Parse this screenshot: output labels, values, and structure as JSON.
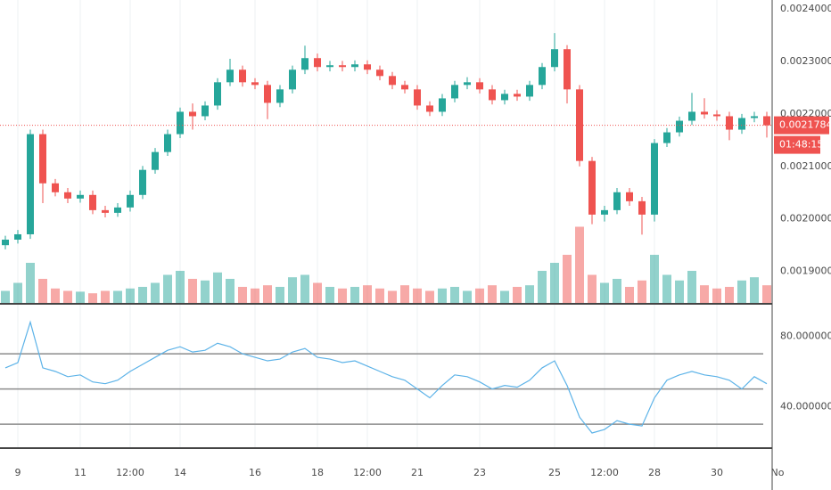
{
  "chart_data": {
    "type": "candlestick",
    "categories": [
      null,
      "9",
      null,
      null,
      null,
      null,
      "11",
      null,
      null,
      null,
      "12:00",
      null,
      null,
      null,
      "14",
      null,
      null,
      null,
      null,
      null,
      "16",
      null,
      null,
      null,
      null,
      "18",
      null,
      null,
      null,
      "12:00",
      null,
      null,
      null,
      "21",
      null,
      null,
      null,
      null,
      "23",
      null,
      null,
      null,
      null,
      null,
      "25",
      null,
      null,
      null,
      "12:00",
      null,
      null,
      null,
      "28",
      null,
      null,
      null,
      null,
      "30",
      null,
      null,
      null,
      null
    ],
    "next_label": "No",
    "open": [
      0.00195,
      0.0019605,
      0.0019707,
      0.0021615,
      0.0020678,
      0.0020508,
      0.0020388,
      0.0020457,
      0.0020167,
      0.0020116,
      0.0020218,
      0.0020457,
      0.0020934,
      0.0021274,
      0.0021615,
      0.0022041,
      0.0021956,
      0.002216,
      0.0022603,
      0.0022842,
      0.0022603,
      0.0022552,
      0.0022211,
      0.0022467,
      0.0022842,
      0.0023063,
      0.0022893,
      0.0022927,
      0.0022893,
      0.0022944,
      0.0022842,
      0.0022722,
      0.0022552,
      0.0022467,
      0.002216,
      0.0022041,
      0.0022296,
      0.0022552,
      0.0022603,
      0.0022467,
      0.0022262,
      0.0022382,
      0.002233,
      0.0022552,
      0.0022893,
      0.0023233,
      0.0022467,
      0.0021104,
      0.0020082,
      0.0020167,
      0.0020508,
      0.0020337,
      0.0020082,
      0.0021445,
      0.0021649,
      0.002187,
      0.0022041,
      0.002199,
      0.0021956,
      0.00217,
      0.0021922,
      0.0021956
    ],
    "high": [
      0.001968,
      0.001979,
      0.00217,
      0.00217,
      0.002076,
      0.002059,
      0.002054,
      0.002054,
      0.002025,
      0.00203,
      0.002054,
      0.002101,
      0.002135,
      0.00217,
      0.002212,
      0.00222,
      0.002224,
      0.002268,
      0.002305,
      0.002292,
      0.002268,
      0.002263,
      0.002255,
      0.002292,
      0.00233,
      0.002315,
      0.002301,
      0.002301,
      0.002302,
      0.002302,
      0.002292,
      0.00228,
      0.002263,
      0.002255,
      0.002224,
      0.002238,
      0.002263,
      0.00227,
      0.002268,
      0.002255,
      0.002246,
      0.002246,
      0.002263,
      0.002297,
      0.002354,
      0.002331,
      0.002255,
      0.002118,
      0.002025,
      0.002059,
      0.002059,
      0.002042,
      0.002152,
      0.002173,
      0.002195,
      0.00224,
      0.00223,
      0.002207,
      0.002204,
      0.0022,
      0.002204,
      0.002204
    ],
    "low": [
      0.001942,
      0.001953,
      0.001962,
      0.00203,
      0.002043,
      0.00203,
      0.002031,
      0.002009,
      0.002003,
      0.002004,
      0.002014,
      0.002038,
      0.002086,
      0.00212,
      0.002154,
      0.00217,
      0.002188,
      0.002208,
      0.002253,
      0.002252,
      0.002247,
      0.00219,
      0.002213,
      0.002239,
      0.002276,
      0.002281,
      0.002281,
      0.002281,
      0.002281,
      0.002276,
      0.002264,
      0.002247,
      0.002239,
      0.002208,
      0.002196,
      0.002196,
      0.002222,
      0.002247,
      0.002239,
      0.002218,
      0.002218,
      0.002225,
      0.002225,
      0.002247,
      0.002281,
      0.00222,
      0.0021,
      0.00199,
      0.001995,
      0.002009,
      0.002025,
      0.00197,
      0.001995,
      0.002137,
      0.002157,
      0.002179,
      0.002191,
      0.002187,
      0.00215,
      0.002162,
      0.002184,
      0.002155
    ],
    "close": [
      0.0019605,
      0.0019707,
      0.0021615,
      0.0020678,
      0.0020508,
      0.0020388,
      0.0020457,
      0.0020167,
      0.0020116,
      0.0020218,
      0.0020457,
      0.0020934,
      0.0021274,
      0.0021615,
      0.0022041,
      0.0021956,
      0.002216,
      0.0022603,
      0.0022842,
      0.0022603,
      0.0022552,
      0.0022211,
      0.0022467,
      0.0022842,
      0.0023063,
      0.0022893,
      0.0022927,
      0.0022893,
      0.0022944,
      0.0022842,
      0.0022722,
      0.0022552,
      0.0022467,
      0.002216,
      0.0022041,
      0.0022296,
      0.0022552,
      0.0022603,
      0.0022467,
      0.0022262,
      0.0022382,
      0.002233,
      0.0022552,
      0.0022893,
      0.0023233,
      0.0022467,
      0.0021104,
      0.0020082,
      0.0020167,
      0.0020508,
      0.0020337,
      0.0020082,
      0.0021445,
      0.0021649,
      0.002187,
      0.0022041,
      0.002199,
      0.0021956,
      0.00217,
      0.0021922,
      0.0021956,
      0.0021784
    ],
    "up_color": "#26a69a",
    "down_color": "#ef5350",
    "ylim": [
      0.00184,
      0.002417
    ],
    "yticks": [
      {
        "value": 0.0024,
        "label": "0.0024000"
      },
      {
        "value": 0.0023,
        "label": "0.0023000"
      },
      {
        "value": 0.0022,
        "label": "0.0022000"
      },
      {
        "value": 0.0021,
        "label": "0.0021000"
      },
      {
        "value": 0.002,
        "label": "0.0020000"
      },
      {
        "value": 0.0019,
        "label": "0.0019000"
      }
    ],
    "grid": true,
    "last_price": 0.0021784,
    "countdown": "01:48:15",
    "volume": [
      15,
      25,
      50,
      30,
      18,
      15,
      14,
      12,
      15,
      15,
      18,
      20,
      25,
      35,
      40,
      30,
      28,
      38,
      30,
      20,
      18,
      22,
      20,
      32,
      35,
      25,
      20,
      18,
      20,
      22,
      18,
      15,
      22,
      18,
      15,
      18,
      20,
      15,
      18,
      22,
      15,
      20,
      22,
      40,
      50,
      60,
      95,
      35,
      25,
      30,
      20,
      28,
      60,
      35,
      28,
      40,
      22,
      18,
      20,
      28,
      32,
      22
    ],
    "vlim": [
      0,
      100
    ],
    "rsi": {
      "values": [
        62,
        65,
        88,
        62,
        60,
        57,
        58,
        54,
        53,
        55,
        60,
        64,
        68,
        72,
        74,
        71,
        72,
        76,
        74,
        70,
        68,
        66,
        67,
        71,
        73,
        68,
        67,
        65,
        66,
        63,
        60,
        57,
        55,
        50,
        45,
        52,
        58,
        57,
        54,
        50,
        52,
        51,
        55,
        62,
        66,
        52,
        34,
        25,
        27,
        32,
        30,
        29,
        45,
        55,
        58,
        60,
        58,
        57,
        55,
        50,
        57,
        53
      ],
      "color": "#5db3e8",
      "ylim": [
        16.9,
        97.4
      ],
      "yticks": [
        {
          "value": 80,
          "label": "80.0000000"
        },
        {
          "value": 40,
          "label": "40.0000000"
        }
      ],
      "levels": [
        70,
        50,
        30
      ]
    }
  }
}
